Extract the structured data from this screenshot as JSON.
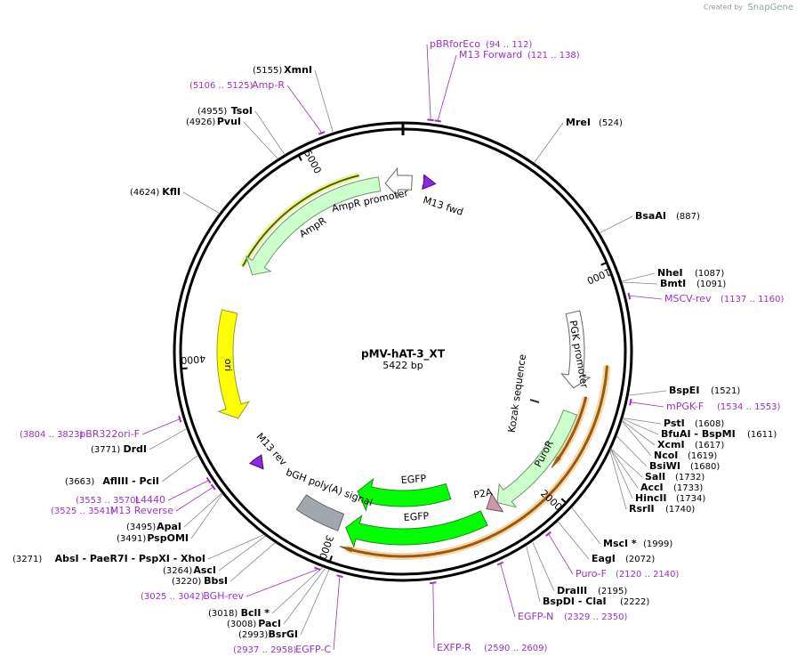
{
  "watermark": {
    "prefix": "Created by",
    "brand": "SnapGene"
  },
  "plasmid": {
    "name": "pMV-hAT-3_XT",
    "length": "5422 bp"
  },
  "scale_labels": [
    1000,
    2000,
    3000,
    4000,
    5000
  ],
  "enzymes": [
    {
      "name": "MreI",
      "position": "(524)"
    },
    {
      "name": "BsaAI",
      "position": "(887)"
    },
    {
      "name": "NheI",
      "position": "(1087)"
    },
    {
      "name": "BmtI",
      "position": "(1091)"
    },
    {
      "name": "BspEI",
      "position": "(1521)"
    },
    {
      "name": "PstI",
      "position": "(1608)"
    },
    {
      "name": "BfuAI - BspMI",
      "position": "(1611)"
    },
    {
      "name": "XcmI",
      "position": "(1617)"
    },
    {
      "name": "NcoI",
      "position": "(1619)"
    },
    {
      "name": "BsiWI",
      "position": "(1680)"
    },
    {
      "name": "SalI",
      "position": "(1732)"
    },
    {
      "name": "AccI",
      "position": "(1733)"
    },
    {
      "name": "HincII",
      "position": "(1734)"
    },
    {
      "name": "RsrII",
      "position": "(1740)"
    },
    {
      "name": "MscI *",
      "position": "(1999)"
    },
    {
      "name": "EagI",
      "position": "(2072)"
    },
    {
      "name": "DraIII",
      "position": "(2195)"
    },
    {
      "name": "BspDI - ClaI",
      "position": "(2222)"
    },
    {
      "name": "XmnI",
      "position": "(5155)"
    },
    {
      "name": "TsoI",
      "position": "(4955)"
    },
    {
      "name": "PvuI",
      "position": "(4926)"
    },
    {
      "name": "KflI",
      "position": "(4624)"
    },
    {
      "name": "DrdI",
      "position": "(3771)"
    },
    {
      "name": "AflIII - PciI",
      "position": "(3663)"
    },
    {
      "name": "ApaI",
      "position": "(3495)"
    },
    {
      "name": "PspOMI",
      "position": "(3491)"
    },
    {
      "name": "AbsI - PaeR7I - PspXI - XhoI",
      "position": "(3271)"
    },
    {
      "name": "AscI",
      "position": "(3264)"
    },
    {
      "name": "BbsI",
      "position": "(3220)"
    },
    {
      "name": "BclI *",
      "position": "(3018)"
    },
    {
      "name": "PacI",
      "position": "(3008)"
    },
    {
      "name": "BsrGI",
      "position": "(2993)"
    }
  ],
  "primers": [
    {
      "name": "pBRforEco",
      "range": "(94 .. 112)"
    },
    {
      "name": "M13 Forward",
      "range": "(121 .. 138)"
    },
    {
      "name": "MSCV-rev",
      "range": "(1137 .. 1160)"
    },
    {
      "name": "mPGK-F",
      "range": "(1534 .. 1553)"
    },
    {
      "name": "Puro-F",
      "range": "(2120 .. 2140)"
    },
    {
      "name": "EGFP-N",
      "range": "(2329 .. 2350)"
    },
    {
      "name": "EXFP-R",
      "range": "(2590 .. 2609)"
    },
    {
      "name": "Amp-R",
      "range": "(5106 .. 5125)"
    },
    {
      "name": "EGFP-C",
      "range": "(2937 .. 2958)"
    },
    {
      "name": "BGH-rev",
      "range": "(3025 .. 3042)"
    },
    {
      "name": "pBR322ori-F",
      "range": "(3804 .. 3823)"
    },
    {
      "name": "L4440",
      "range": "(3553 .. 3570)"
    },
    {
      "name": "M13 Reverse",
      "range": "(3525 .. 3541)"
    }
  ],
  "features": [
    "AmpR promoter",
    "AmpR",
    "ori",
    "M13 fwd",
    "M13 rev",
    "bGH poly(A) signal",
    "EGFP",
    "EGFP",
    "P2A",
    "PuroR",
    "PGK promoter",
    "Kozak sequence"
  ]
}
